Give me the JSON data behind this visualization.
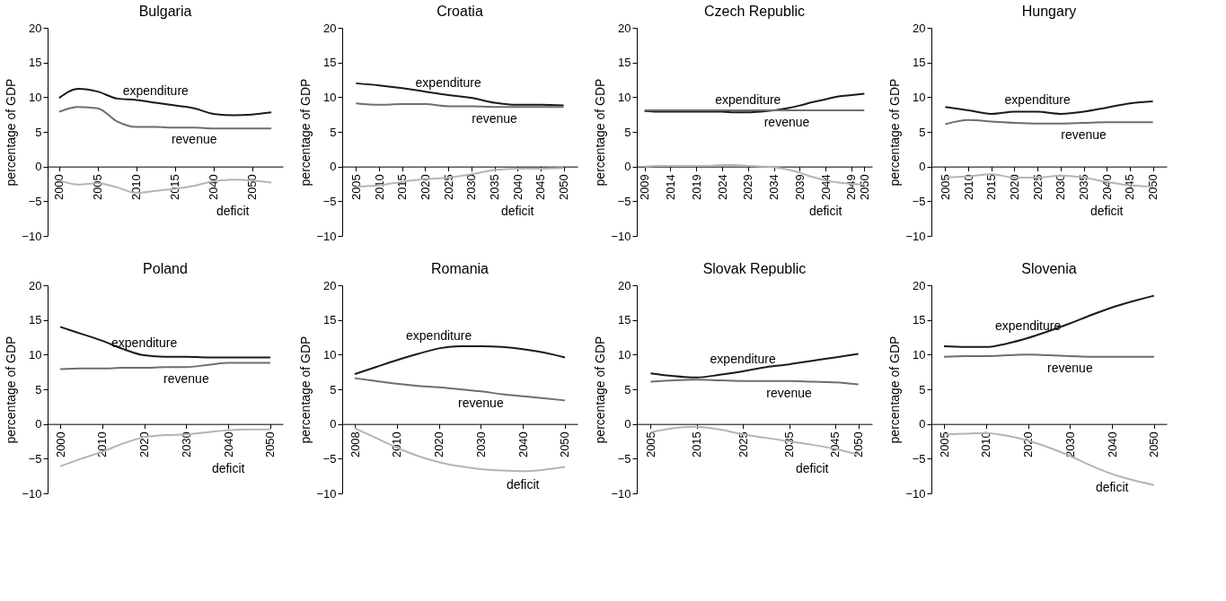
{
  "chart_data": [
    {
      "type": "line",
      "title": "Bulgaria",
      "ylabel": "percentage of GDP",
      "grid": false,
      "legend": false,
      "ylim": [
        -10,
        20
      ],
      "yticks": [
        {
          "value": -10,
          "label": "−10"
        },
        {
          "value": -5,
          "label": "−5"
        },
        0,
        5,
        10,
        15,
        20
      ],
      "categories": [
        "2000",
        null,
        "2005",
        null,
        "2010",
        null,
        "2015",
        null,
        "2040",
        null,
        "2050",
        null
      ],
      "series": [
        {
          "name": "expenditure",
          "color": "#1a1a1a",
          "values": [
            9.9,
            11.2,
            10.8,
            9.8,
            9.6,
            9.2,
            8.8,
            8.4,
            7.6,
            7.4,
            7.5,
            7.8
          ]
        },
        {
          "name": "revenue",
          "color": "#6e6e6e",
          "values": [
            7.9,
            8.6,
            8.4,
            6.5,
            5.7,
            5.7,
            5.6,
            5.6,
            5.5,
            5.5,
            5.5,
            5.5
          ]
        },
        {
          "name": "deficit",
          "color": "#b4b4b4",
          "values": [
            -2.0,
            -2.6,
            -2.4,
            -3.0,
            -3.8,
            -3.5,
            -3.2,
            -2.8,
            -2.1,
            -1.9,
            -2.0,
            -2.3
          ]
        }
      ]
    },
    {
      "type": "line",
      "title": "Croatia",
      "ylabel": "percentage of GDP",
      "grid": false,
      "legend": false,
      "ylim": [
        -10,
        20
      ],
      "yticks": [
        {
          "value": -10,
          "label": "−10"
        },
        {
          "value": -5,
          "label": "−5"
        },
        0,
        5,
        10,
        15,
        20
      ],
      "categories": [
        "2005",
        "2010",
        "2015",
        "2020",
        "2025",
        "2030",
        "2035",
        "2040",
        "2045",
        "2050"
      ],
      "series": [
        {
          "name": "expenditure",
          "color": "#1a1a1a",
          "values": [
            12.0,
            11.7,
            11.3,
            10.8,
            10.3,
            9.9,
            9.2,
            8.9,
            8.9,
            8.8
          ]
        },
        {
          "name": "revenue",
          "color": "#6e6e6e",
          "values": [
            9.1,
            8.9,
            9.0,
            9.0,
            8.7,
            8.7,
            8.6,
            8.6,
            8.6,
            8.6
          ]
        },
        {
          "name": "deficit",
          "color": "#b4b4b4",
          "values": [
            -2.9,
            -2.7,
            -2.2,
            -1.8,
            -1.6,
            -1.1,
            -0.5,
            -0.3,
            -0.3,
            -0.2
          ]
        }
      ]
    },
    {
      "type": "line",
      "title": "Czech Republic",
      "ylabel": "percentage of GDP",
      "grid": false,
      "legend": false,
      "ylim": [
        -10,
        20
      ],
      "yticks": [
        {
          "value": -10,
          "label": "−10"
        },
        {
          "value": -5,
          "label": "−5"
        },
        0,
        5,
        10,
        15,
        20
      ],
      "categories": [
        "2009",
        null,
        "2014",
        null,
        "2019",
        null,
        "2024",
        null,
        "2029",
        null,
        "2034",
        null,
        "2039",
        null,
        "2044",
        null,
        "2049",
        "2050"
      ],
      "series": [
        {
          "name": "expenditure",
          "color": "#1a1a1a",
          "values": [
            8.0,
            7.9,
            7.9,
            7.9,
            7.9,
            7.9,
            7.9,
            7.8,
            7.8,
            7.9,
            8.1,
            8.4,
            8.8,
            9.3,
            9.7,
            10.1,
            10.3,
            10.5
          ]
        },
        {
          "name": "revenue",
          "color": "#6e6e6e",
          "values": [
            8.1,
            8.1,
            8.1,
            8.1,
            8.1,
            8.1,
            8.1,
            8.1,
            8.1,
            8.1,
            8.1,
            8.1,
            8.1,
            8.1,
            8.1,
            8.1,
            8.1,
            8.1
          ]
        },
        {
          "name": "deficit",
          "color": "#b4b4b4",
          "values": [
            0.0,
            0.1,
            0.1,
            0.1,
            0.1,
            0.1,
            0.2,
            0.2,
            0.1,
            0.0,
            -0.1,
            -0.4,
            -0.9,
            -1.5,
            -2.0,
            -2.3,
            -2.5,
            -2.6
          ]
        }
      ]
    },
    {
      "type": "line",
      "title": "Hungary",
      "ylabel": "percentage of GDP",
      "grid": false,
      "legend": false,
      "ylim": [
        -10,
        20
      ],
      "yticks": [
        {
          "value": -10,
          "label": "−10"
        },
        {
          "value": -5,
          "label": "−5"
        },
        0,
        5,
        10,
        15,
        20
      ],
      "categories": [
        "2005",
        "2010",
        "2015",
        "2020",
        "2025",
        "2030",
        "2035",
        "2040",
        "2045",
        "2050"
      ],
      "series": [
        {
          "name": "expenditure",
          "color": "#1a1a1a",
          "values": [
            8.6,
            8.1,
            7.6,
            7.9,
            7.9,
            7.6,
            7.9,
            8.5,
            9.1,
            9.4
          ]
        },
        {
          "name": "revenue",
          "color": "#6e6e6e",
          "values": [
            6.1,
            6.7,
            6.5,
            6.3,
            6.2,
            6.2,
            6.3,
            6.4,
            6.4,
            6.4
          ]
        },
        {
          "name": "deficit",
          "color": "#b4b4b4",
          "values": [
            -1.6,
            -1.4,
            -1.1,
            -1.6,
            -1.6,
            -1.3,
            -1.6,
            -2.2,
            -2.7,
            -2.9
          ]
        }
      ]
    },
    {
      "type": "line",
      "title": "Poland",
      "ylabel": "percentage of GDP",
      "grid": false,
      "legend": false,
      "ylim": [
        -10,
        20
      ],
      "yticks": [
        {
          "value": -10,
          "label": "−10"
        },
        {
          "value": -5,
          "label": "−5"
        },
        0,
        5,
        10,
        15,
        20
      ],
      "categories": [
        "2000",
        null,
        "2010",
        null,
        "2020",
        null,
        "2030",
        null,
        "2040",
        null,
        "2050"
      ],
      "series": [
        {
          "name": "expenditure",
          "color": "#1a1a1a",
          "values": [
            14.0,
            13.0,
            12.0,
            10.8,
            9.9,
            9.7,
            9.7,
            9.6,
            9.6,
            9.6,
            9.6
          ]
        },
        {
          "name": "revenue",
          "color": "#6e6e6e",
          "values": [
            7.9,
            8.0,
            8.0,
            8.1,
            8.1,
            8.2,
            8.2,
            8.5,
            8.8,
            8.8,
            8.8
          ]
        },
        {
          "name": "deficit",
          "color": "#b4b4b4",
          "values": [
            -6.1,
            -5.0,
            -4.0,
            -2.8,
            -1.9,
            -1.6,
            -1.5,
            -1.2,
            -0.9,
            -0.8,
            -0.8
          ]
        }
      ]
    },
    {
      "type": "line",
      "title": "Romania",
      "ylabel": "percentage of GDP",
      "grid": false,
      "legend": false,
      "ylim": [
        -10,
        20
      ],
      "yticks": [
        {
          "value": -10,
          "label": "−10"
        },
        {
          "value": -5,
          "label": "−5"
        },
        0,
        5,
        10,
        15,
        20
      ],
      "categories": [
        "2008",
        null,
        "2010",
        null,
        "2020",
        null,
        "2030",
        null,
        "2040",
        null,
        "2050"
      ],
      "series": [
        {
          "name": "expenditure",
          "color": "#1a1a1a",
          "values": [
            7.2,
            8.2,
            9.2,
            10.1,
            10.9,
            11.2,
            11.2,
            11.1,
            10.8,
            10.3,
            9.6
          ]
        },
        {
          "name": "revenue",
          "color": "#6e6e6e",
          "values": [
            6.6,
            6.2,
            5.8,
            5.5,
            5.3,
            5.0,
            4.7,
            4.3,
            4.0,
            3.7,
            3.4
          ]
        },
        {
          "name": "deficit",
          "color": "#b4b4b4",
          "values": [
            -0.6,
            -2.0,
            -3.4,
            -4.6,
            -5.5,
            -6.1,
            -6.5,
            -6.7,
            -6.8,
            -6.6,
            -6.2
          ]
        }
      ]
    },
    {
      "type": "line",
      "title": "Slovak Republic",
      "ylabel": "percentage of GDP",
      "grid": false,
      "legend": false,
      "ylim": [
        -10,
        20
      ],
      "yticks": [
        {
          "value": -10,
          "label": "−10"
        },
        {
          "value": -5,
          "label": "−5"
        },
        0,
        5,
        10,
        15,
        20
      ],
      "categories": [
        "2005",
        null,
        "2015",
        null,
        "2025",
        null,
        "2035",
        null,
        "2045",
        "2050"
      ],
      "series": [
        {
          "name": "expenditure",
          "color": "#1a1a1a",
          "values": [
            7.3,
            6.9,
            6.7,
            7.1,
            7.6,
            8.2,
            8.6,
            9.1,
            9.6,
            10.1
          ]
        },
        {
          "name": "revenue",
          "color": "#6e6e6e",
          "values": [
            6.1,
            6.3,
            6.4,
            6.3,
            6.2,
            6.2,
            6.2,
            6.1,
            6.0,
            5.7
          ]
        },
        {
          "name": "deficit",
          "color": "#b4b4b4",
          "values": [
            -1.2,
            -0.6,
            -0.4,
            -0.8,
            -1.5,
            -2.0,
            -2.5,
            -3.0,
            -3.6,
            -4.4
          ]
        }
      ]
    },
    {
      "type": "line",
      "title": "Slovenia",
      "ylabel": "percentage of GDP",
      "grid": false,
      "legend": false,
      "ylim": [
        -10,
        20
      ],
      "yticks": [
        {
          "value": -10,
          "label": "−10"
        },
        {
          "value": -5,
          "label": "−5"
        },
        0,
        5,
        10,
        15,
        20
      ],
      "categories": [
        "2005",
        null,
        "2010",
        null,
        "2020",
        null,
        "2030",
        null,
        "2040",
        null,
        "2050"
      ],
      "series": [
        {
          "name": "expenditure",
          "color": "#1a1a1a",
          "values": [
            11.2,
            11.1,
            11.1,
            11.6,
            12.4,
            13.4,
            14.5,
            15.7,
            16.8,
            17.7,
            18.5
          ]
        },
        {
          "name": "revenue",
          "color": "#6e6e6e",
          "values": [
            9.7,
            9.8,
            9.8,
            9.9,
            10.0,
            9.9,
            9.8,
            9.7,
            9.7,
            9.7,
            9.7
          ]
        },
        {
          "name": "deficit",
          "color": "#b4b4b4",
          "values": [
            -1.5,
            -1.4,
            -1.3,
            -1.7,
            -2.4,
            -3.4,
            -4.6,
            -6.0,
            -7.2,
            -8.1,
            -8.8
          ]
        }
      ]
    }
  ]
}
